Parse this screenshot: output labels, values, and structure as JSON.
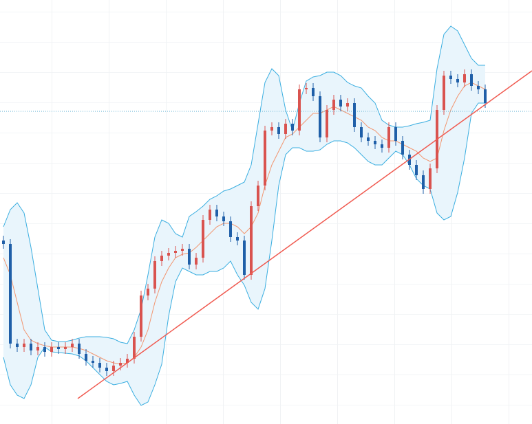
{
  "chart_data": {
    "type": "candlestick",
    "xlim": [
      -0.5,
      76.8
    ],
    "ylim": [
      0,
      617
    ],
    "up_color": "#d9534f",
    "down_color": "#1f5fa8",
    "open": [
      267,
      262,
      117,
      112,
      117,
      107,
      112,
      105,
      112,
      109,
      112,
      117,
      102,
      92,
      89,
      82,
      77,
      85,
      89,
      95,
      127,
      187,
      197,
      237,
      245,
      249,
      252,
      255,
      232,
      242,
      297,
      312,
      302,
      295,
      272,
      267,
      217,
      317,
      347,
      427,
      432,
      422,
      437,
      427,
      487,
      489,
      477,
      417,
      457,
      472,
      462,
      467,
      432,
      417,
      412,
      407,
      402,
      432,
      412,
      392,
      377,
      362,
      342,
      372,
      457,
      507,
      502,
      497,
      509,
      492,
      487
    ],
    "high": [
      274,
      269,
      124,
      124,
      124,
      119,
      119,
      119,
      119,
      119,
      124,
      124,
      109,
      99,
      96,
      89,
      92,
      96,
      102,
      134,
      194,
      204,
      244,
      252,
      256,
      259,
      262,
      262,
      249,
      304,
      319,
      319,
      309,
      302,
      279,
      274,
      324,
      354,
      434,
      439,
      439,
      444,
      444,
      494,
      496,
      496,
      484,
      464,
      479,
      479,
      474,
      474,
      439,
      424,
      419,
      414,
      439,
      439,
      419,
      399,
      384,
      369,
      379,
      464,
      514,
      514,
      509,
      516,
      516,
      499,
      494
    ],
    "low": [
      255,
      110,
      105,
      105,
      100,
      100,
      98,
      98,
      102,
      102,
      105,
      95,
      85,
      82,
      75,
      70,
      70,
      78,
      82,
      88,
      120,
      180,
      190,
      230,
      238,
      242,
      245,
      225,
      225,
      235,
      290,
      295,
      288,
      265,
      260,
      210,
      210,
      310,
      340,
      420,
      415,
      415,
      420,
      420,
      480,
      470,
      410,
      410,
      450,
      455,
      455,
      425,
      410,
      405,
      400,
      395,
      395,
      405,
      385,
      370,
      355,
      335,
      335,
      365,
      450,
      495,
      490,
      490,
      485,
      480,
      460
    ],
    "close": [
      262,
      117,
      112,
      117,
      107,
      112,
      105,
      112,
      109,
      112,
      117,
      102,
      92,
      89,
      82,
      77,
      85,
      89,
      95,
      127,
      187,
      197,
      237,
      245,
      249,
      252,
      255,
      232,
      242,
      297,
      312,
      302,
      295,
      272,
      267,
      217,
      317,
      347,
      427,
      432,
      422,
      437,
      427,
      487,
      489,
      477,
      417,
      457,
      472,
      462,
      467,
      432,
      417,
      412,
      407,
      402,
      432,
      412,
      392,
      377,
      362,
      342,
      372,
      457,
      507,
      502,
      497,
      509,
      492,
      487,
      467
    ],
    "bands": {
      "band_color": "#3aaee0",
      "fill_color": "#e9f5fc",
      "middle_color": "#f29670",
      "upper": [
        287,
        312,
        322,
        307,
        257,
        197,
        137,
        122,
        120,
        120,
        122,
        125,
        127,
        127,
        127,
        126,
        124,
        119,
        117,
        137,
        167,
        217,
        272,
        297,
        292,
        277,
        272,
        302,
        309,
        317,
        327,
        332,
        339,
        342,
        347,
        352,
        377,
        437,
        497,
        517,
        507,
        457,
        427,
        467,
        499,
        505,
        507,
        512,
        512,
        507,
        497,
        492,
        489,
        477,
        467,
        442,
        435,
        432,
        432,
        434,
        437,
        439,
        442,
        517,
        567,
        579,
        572,
        552,
        532,
        522,
        522
      ],
      "middle": [
        242,
        217,
        177,
        137,
        122,
        117,
        114,
        112,
        112,
        112,
        112,
        110,
        107,
        102,
        97,
        92,
        89,
        87,
        89,
        97,
        112,
        137,
        177,
        207,
        227,
        242,
        247,
        249,
        257,
        267,
        277,
        287,
        292,
        292,
        287,
        277,
        287,
        307,
        347,
        377,
        397,
        417,
        422,
        432,
        442,
        452,
        452,
        457,
        462,
        457,
        452,
        447,
        442,
        432,
        427,
        417,
        412,
        412,
        407,
        402,
        397,
        387,
        382,
        387,
        427,
        457,
        477,
        492,
        497,
        492,
        487
      ],
      "lower": [
        97,
        57,
        42,
        37,
        57,
        97,
        112,
        105,
        104,
        103,
        102,
        99,
        92,
        82,
        72,
        62,
        57,
        59,
        62,
        42,
        27,
        32,
        57,
        87,
        157,
        207,
        227,
        222,
        217,
        217,
        222,
        222,
        227,
        237,
        217,
        202,
        177,
        167,
        197,
        267,
        347,
        392,
        402,
        402,
        397,
        397,
        399,
        407,
        412,
        412,
        409,
        402,
        392,
        382,
        377,
        377,
        387,
        397,
        392,
        377,
        357,
        347,
        342,
        307,
        297,
        302,
        337,
        387,
        452,
        467,
        467
      ]
    },
    "trendline": {
      "color": "#f05a50",
      "x": [
        10.8,
        76.8
      ],
      "values": [
        37,
        514
      ]
    },
    "reference_line": {
      "color": "#5aaed0",
      "value": 455
    }
  }
}
